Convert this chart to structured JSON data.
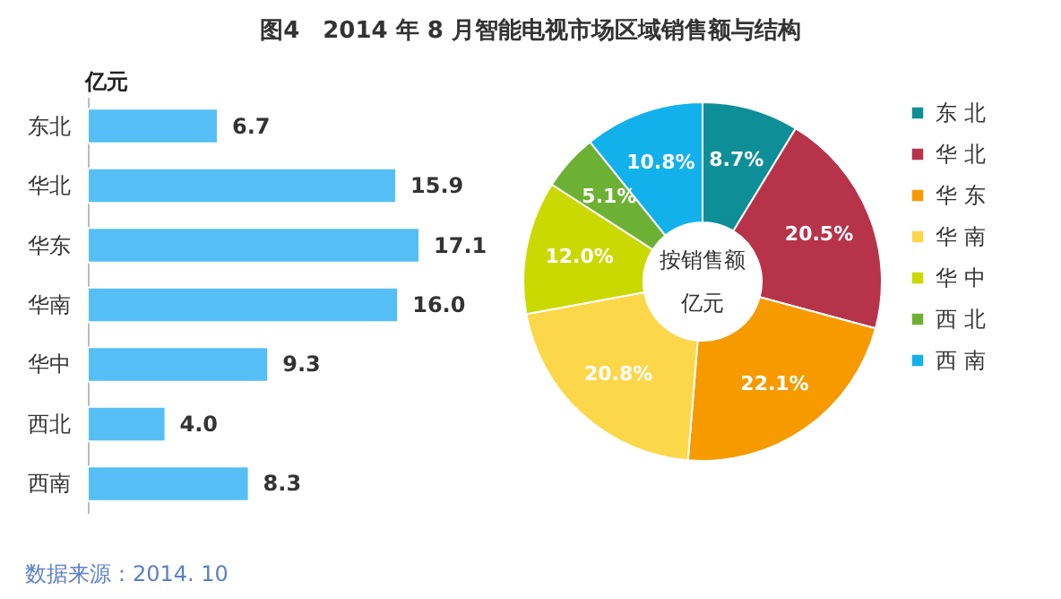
{
  "chart_data": [
    {
      "type": "bar",
      "orientation": "horizontal",
      "title": "图4　2014 年 8 月智能电视市场区域销售额与结构",
      "xlabel": "亿元",
      "categories": [
        "东北",
        "华北",
        "华东",
        "华南",
        "华中",
        "西北",
        "西南"
      ],
      "values": [
        6.7,
        15.9,
        17.1,
        16.0,
        9.3,
        4.0,
        8.3
      ],
      "color": "#55bff5",
      "value_labels": [
        "6.7",
        "15.9",
        "17.1",
        "16.0",
        "9.3",
        "4.0",
        "8.3"
      ],
      "annotations": [
        "数据来源：2014. 10"
      ]
    },
    {
      "type": "donut",
      "categories": [
        "东 北",
        "华 北",
        "华 东",
        "华 南",
        "华 中",
        "西 北",
        "西 南"
      ],
      "values": [
        8.7,
        20.5,
        22.1,
        20.8,
        12.0,
        5.1,
        10.8
      ],
      "colors": [
        "#0e8f98",
        "#b6334a",
        "#f79a00",
        "#fdd74a",
        "#cbd902",
        "#6db134",
        "#12b1ec"
      ],
      "legend": "right",
      "value_labels": [
        "8.7%",
        "20.5%",
        "22.1%",
        "20.8%",
        "12.0%",
        "5.1%",
        "10.8%"
      ],
      "annotations": [
        "按销售额",
        "亿元"
      ]
    }
  ]
}
